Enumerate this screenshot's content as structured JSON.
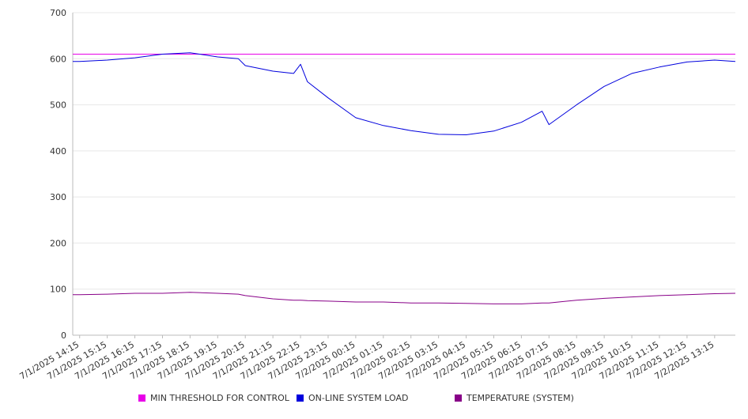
{
  "chart_data": {
    "type": "line",
    "title": "",
    "xlabel": "",
    "ylabel": "",
    "ylim": [
      0,
      700
    ],
    "yticks": [
      "0",
      "100",
      "200",
      "300",
      "400",
      "500",
      "600",
      "700"
    ],
    "grid": true,
    "legend_position": "bottom",
    "x_tick_labels": [
      "7/1/2025 14:15",
      "7/1/2025 15:15",
      "7/1/2025 16:15",
      "7/1/2025 17:15",
      "7/1/2025 18:15",
      "7/1/2025 19:15",
      "7/1/2025 20:15",
      "7/1/2025 21:15",
      "7/1/2025 22:15",
      "7/1/2025 23:15",
      "7/2/2025 00:15",
      "7/2/2025 01:15",
      "7/2/2025 02:15",
      "7/2/2025 03:15",
      "7/2/2025 04:15",
      "7/2/2025 05:15",
      "7/2/2025 06:15",
      "7/2/2025 07:15",
      "7/2/2025 08:15",
      "7/2/2025 09:15",
      "7/2/2025 10:15",
      "7/2/2025 11:15",
      "7/2/2025 12:15",
      "7/2/2025 13:15"
    ],
    "x": [
      "7/1/2025 14:00",
      "7/1/2025 14:15",
      "7/1/2025 15:15",
      "7/1/2025 16:15",
      "7/1/2025 17:15",
      "7/1/2025 18:15",
      "7/1/2025 19:15",
      "7/1/2025 20:00",
      "7/1/2025 20:15",
      "7/1/2025 21:15",
      "7/1/2025 22:00",
      "7/1/2025 22:15",
      "7/1/2025 22:30",
      "7/1/2025 23:15",
      "7/2/2025 00:15",
      "7/2/2025 01:15",
      "7/2/2025 02:15",
      "7/2/2025 03:15",
      "7/2/2025 04:15",
      "7/2/2025 05:15",
      "7/2/2025 06:15",
      "7/2/2025 07:00",
      "7/2/2025 07:15",
      "7/2/2025 08:15",
      "7/2/2025 09:15",
      "7/2/2025 10:15",
      "7/2/2025 11:15",
      "7/2/2025 12:15",
      "7/2/2025 13:15",
      "7/2/2025 14:00"
    ],
    "series": [
      {
        "name": "MIN THRESHOLD FOR CONTROL",
        "color": "#e800e8",
        "values": [
          610,
          610,
          610,
          610,
          610,
          610,
          610,
          610,
          610,
          610,
          610,
          610,
          610,
          610,
          610,
          610,
          610,
          610,
          610,
          610,
          610,
          610,
          610,
          610,
          610,
          610,
          610,
          610,
          610,
          610
        ]
      },
      {
        "name": "ON-LINE SYSTEM LOAD",
        "color": "#0000dd",
        "values": [
          594,
          594,
          597,
          602,
          610,
          613,
          604,
          600,
          585,
          573,
          568,
          588,
          550,
          515,
          472,
          455,
          444,
          436,
          435,
          443,
          462,
          486,
          457,
          500,
          540,
          568,
          582,
          593,
          597,
          594
        ]
      },
      {
        "name": "TEMPERATURE (SYSTEM)",
        "color": "#880088",
        "values": [
          88,
          88,
          89,
          91,
          91,
          93,
          91,
          89,
          86,
          79,
          76,
          76,
          75,
          74,
          72,
          72,
          70,
          70,
          69,
          68,
          68,
          70,
          70,
          76,
          80,
          83,
          86,
          88,
          90,
          91
        ]
      }
    ]
  }
}
